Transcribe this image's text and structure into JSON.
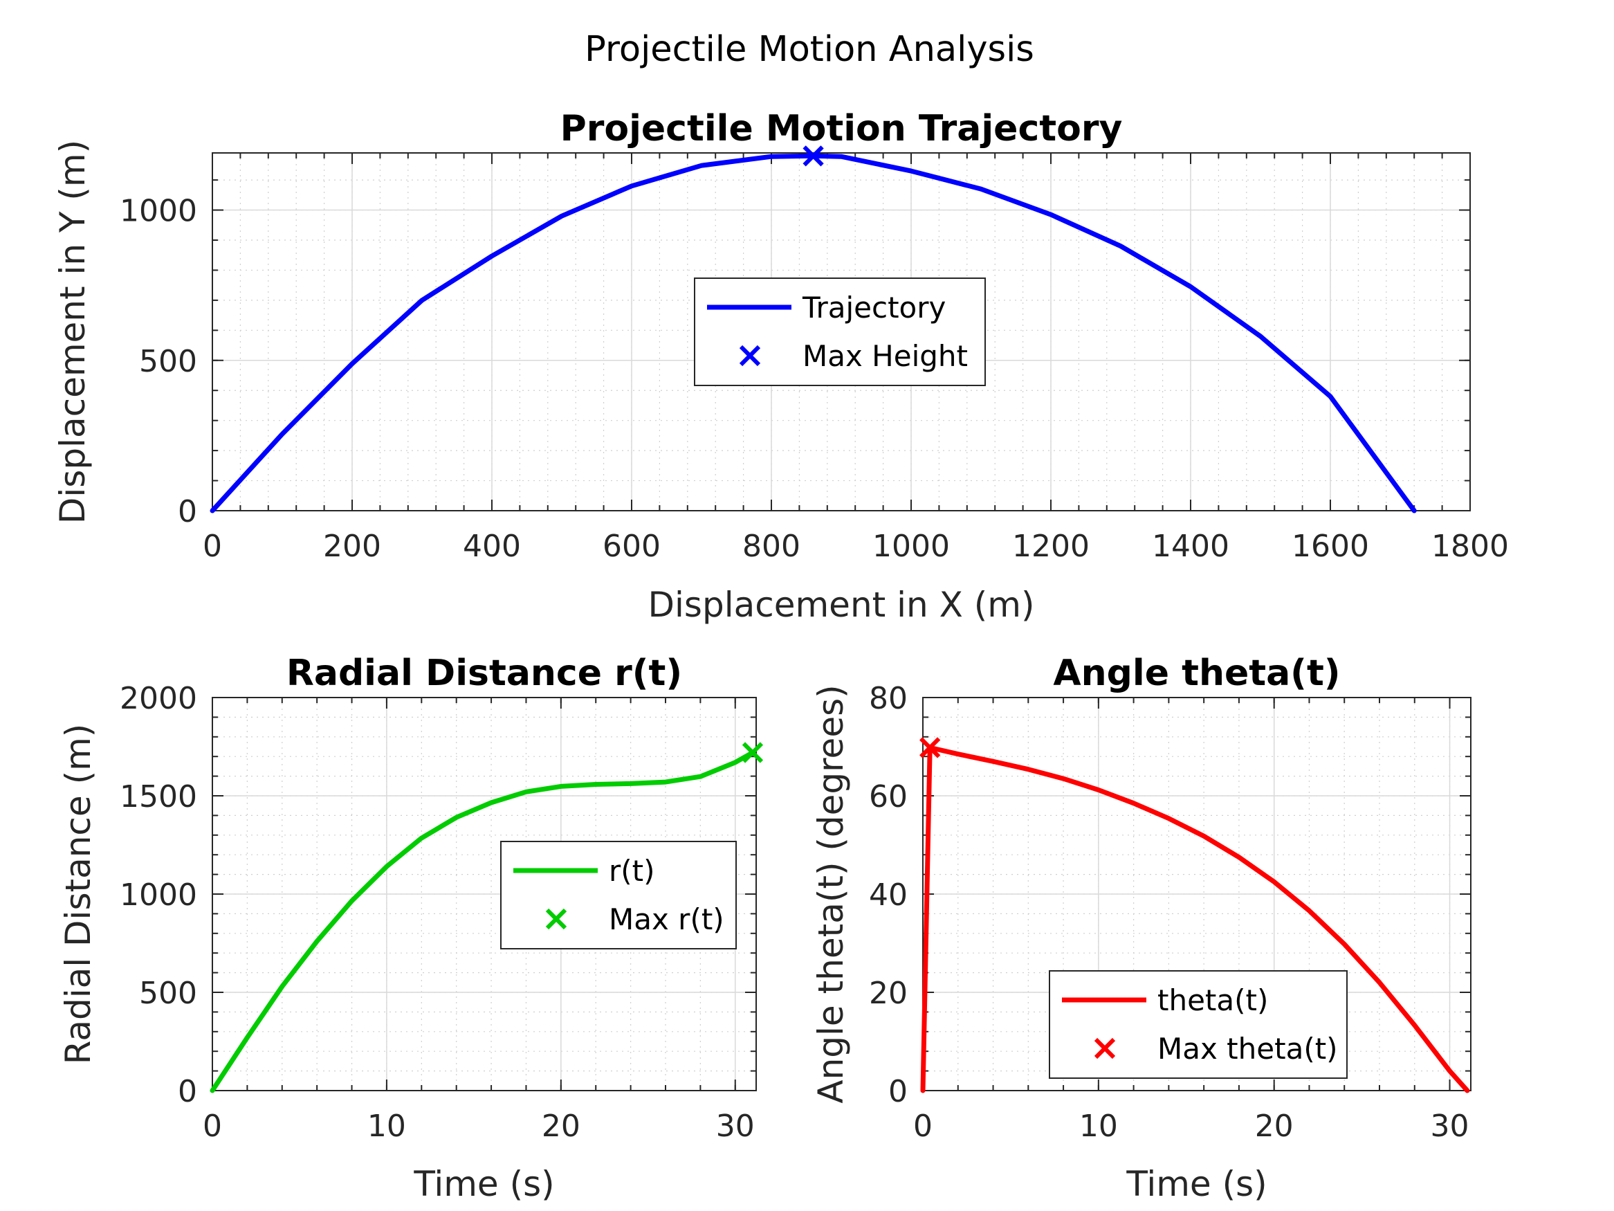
{
  "suptitle": "Projectile Motion Analysis",
  "chart_data": [
    {
      "type": "line",
      "title": "Projectile Motion Trajectory",
      "xlabel": "Displacement in X (m)",
      "ylabel": "Displacement in Y (m)",
      "xlim": [
        0,
        1800
      ],
      "ylim": [
        0,
        1190
      ],
      "xticks": [
        0,
        200,
        400,
        600,
        800,
        1000,
        1200,
        1400,
        1600,
        1800
      ],
      "yticks": [
        0,
        500,
        1000
      ],
      "grid": true,
      "legend_position": "center",
      "series": [
        {
          "name": "Trajectory",
          "kind": "line",
          "color": "#0000ff",
          "x": [
            0,
            100,
            200,
            300,
            400,
            500,
            600,
            700,
            800,
            860,
            900,
            1000,
            1100,
            1200,
            1300,
            1400,
            1500,
            1600,
            1720
          ],
          "y": [
            0,
            255,
            489,
            700,
            847,
            980,
            1080,
            1148,
            1178,
            1180,
            1178,
            1130,
            1070,
            985,
            880,
            745,
            580,
            380,
            0
          ]
        },
        {
          "name": "Max Height",
          "kind": "marker",
          "color": "#0000ff",
          "x": [
            860
          ],
          "y": [
            1180
          ]
        }
      ]
    },
    {
      "type": "line",
      "title": "Radial Distance r(t)",
      "xlabel": "Time (s)",
      "ylabel": "Radial Distance (m)",
      "xlim": [
        0,
        31.2
      ],
      "ylim": [
        0,
        2000
      ],
      "xticks": [
        0,
        10,
        20,
        30
      ],
      "yticks": [
        0,
        500,
        1000,
        1500,
        2000
      ],
      "grid": true,
      "legend_position": "center-right",
      "series": [
        {
          "name": "r(t)",
          "kind": "line",
          "color": "#00cc00",
          "x": [
            0,
            2,
            4,
            6,
            8,
            10,
            12,
            14,
            16,
            18,
            20,
            22,
            24,
            26,
            28,
            30,
            31
          ],
          "y": [
            0,
            270,
            530,
            760,
            965,
            1140,
            1285,
            1390,
            1465,
            1520,
            1548,
            1558,
            1562,
            1570,
            1598,
            1670,
            1720
          ]
        },
        {
          "name": "Max r(t)",
          "kind": "marker",
          "color": "#00cc00",
          "x": [
            31
          ],
          "y": [
            1720
          ]
        }
      ]
    },
    {
      "type": "line",
      "title": "Angle theta(t)",
      "xlabel": "Time (s)",
      "ylabel": "Angle theta(t) (degrees)",
      "xlim": [
        0,
        31.2
      ],
      "ylim": [
        0,
        80
      ],
      "xticks": [
        0,
        10,
        20,
        30
      ],
      "yticks": [
        0,
        20,
        40,
        60,
        80
      ],
      "grid": true,
      "legend_position": "bottom-center",
      "series": [
        {
          "name": "theta(t)",
          "kind": "line",
          "color": "#ff0000",
          "x": [
            0,
            0.4,
            2,
            4,
            6,
            8,
            10,
            12,
            14,
            16,
            18,
            20,
            22,
            24,
            26,
            28,
            30,
            31
          ],
          "y": [
            0,
            69.8,
            68.5,
            67,
            65.4,
            63.5,
            61.2,
            58.5,
            55.4,
            51.8,
            47.5,
            42.5,
            36.6,
            29.8,
            22,
            13.3,
            4,
            0
          ]
        },
        {
          "name": "Max theta(t)",
          "kind": "marker",
          "color": "#ff0000",
          "x": [
            0.4
          ],
          "y": [
            69.8
          ]
        }
      ]
    }
  ]
}
